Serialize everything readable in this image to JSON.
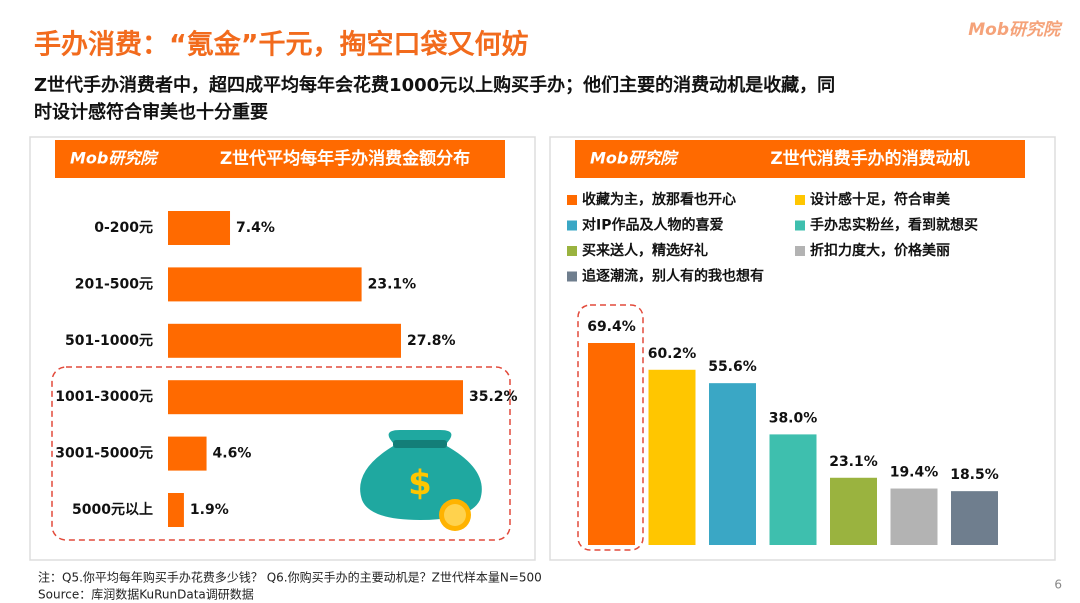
{
  "header": {
    "title": "手办消费：“氪金”千元，掏空口袋又何妨",
    "subtitle_lines": [
      "Z世代手办消费者中，超四成平均每年会花费1000元以上购买手办；他们主要的消费动机是收藏，同",
      "时设计感符合审美也十分重要"
    ],
    "logo": "Mob研究院"
  },
  "chart_data": [
    {
      "type": "hbar",
      "title": "Z世代平均每年手办消费金额分布",
      "categories": [
        "0-200元",
        "201-500元",
        "501-1000元",
        "1001-3000元",
        "3001-5000元",
        "5000元以上"
      ],
      "values": [
        7.4,
        23.1,
        27.8,
        35.2,
        4.6,
        1.9
      ],
      "value_labels": [
        "7.4%",
        "23.1%",
        "27.8%",
        "35.2%",
        "4.6%",
        "1.9%"
      ],
      "color": "#ff6a00"
    },
    {
      "type": "bar",
      "title": "Z世代消费手办的消费动机",
      "categories": [
        "收藏为主，放那看也开心",
        "设计感十足，符合审美",
        "对IP作品及人物的喜爱",
        "手办忠实粉丝，看到就想买",
        "买来送人，精选好礼",
        "折扣力度大，价格美丽",
        "追逐潮流，别人有的我也想有"
      ],
      "values": [
        69.4,
        60.2,
        55.6,
        38.0,
        23.1,
        19.4,
        18.5
      ],
      "value_labels": [
        "69.4%",
        "60.2%",
        "55.6%",
        "38.0%",
        "23.1%",
        "19.4%",
        "18.5%"
      ],
      "colors": [
        "#ff6a00",
        "#ffc600",
        "#3aa7c5",
        "#3ebfae",
        "#9ab33f",
        "#b3b3b3",
        "#6f7e8e"
      ]
    }
  ],
  "footer": {
    "note": "注：Q5.你平均每年购买手办花费多少钱？ Q6.你购买手办的主要动机是？Z世代样本量N=500",
    "source": "Source：库润数据KuRunData调研数据",
    "page": "6"
  }
}
